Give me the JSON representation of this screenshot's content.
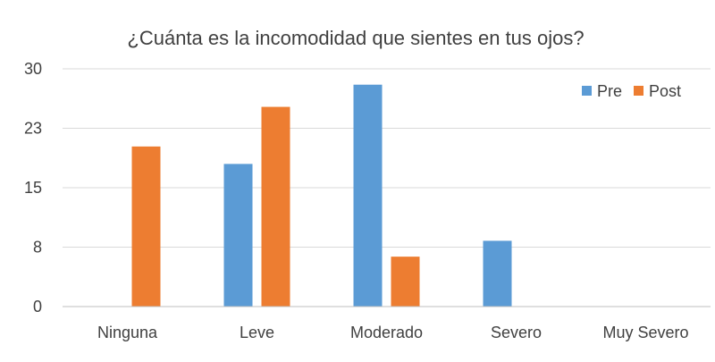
{
  "chart_data": {
    "type": "bar",
    "title": "¿Cuánta es la incomodidad que sientes en tus ojos?",
    "xlabel": "",
    "ylabel": "",
    "categories": [
      "Ninguna",
      "Leve",
      "Moderado",
      "Severo",
      "Muy Severo"
    ],
    "series": [
      {
        "name": "Pre",
        "color": "#5b9bd5",
        "values": [
          0,
          18,
          28,
          8.3,
          0
        ]
      },
      {
        "name": "Post",
        "color": "#ed7d31",
        "values": [
          20.2,
          25.2,
          6.3,
          0,
          0
        ]
      }
    ],
    "ylim": [
      0,
      30
    ],
    "yticks": [
      0,
      7.5,
      15,
      22.5,
      30
    ],
    "ytick_labels": [
      "0",
      "8",
      "15",
      "23",
      "30"
    ],
    "grid": true,
    "legend": "top-right"
  }
}
